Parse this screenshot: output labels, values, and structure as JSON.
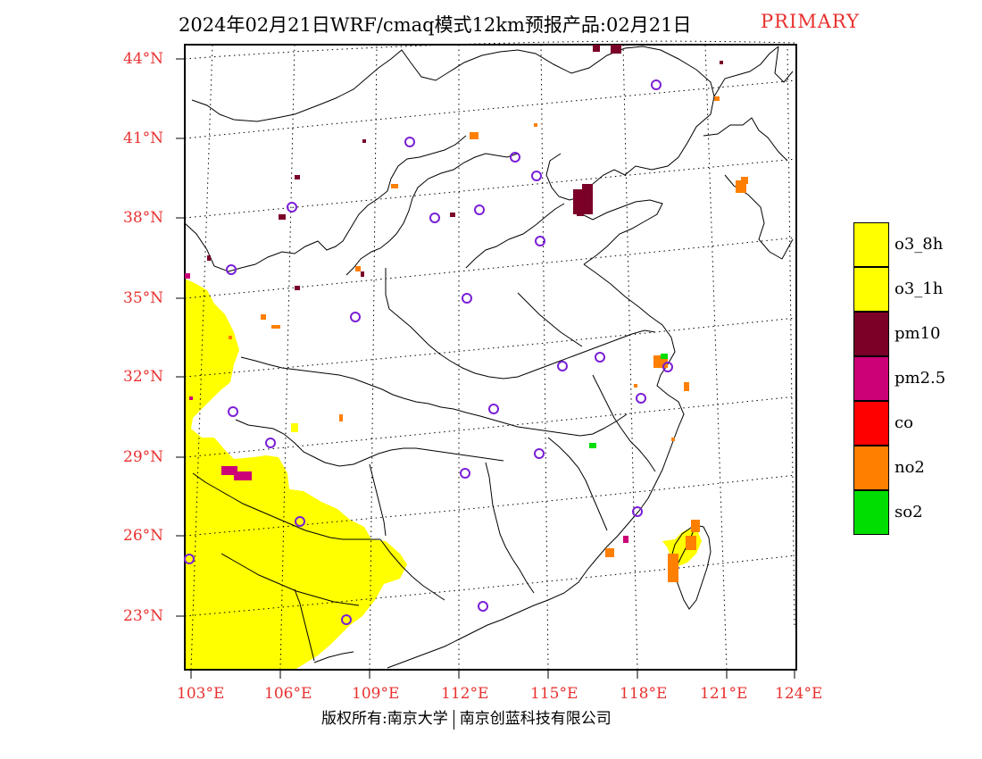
{
  "title": {
    "main": "2024年02月21日WRF/cmaq模式12km预报产品:02月21日",
    "tag": "PRIMARY"
  },
  "axes": {
    "lat_labels": [
      "44°N",
      "41°N",
      "38°N",
      "35°N",
      "32°N",
      "29°N",
      "26°N",
      "23°N"
    ],
    "lon_labels": [
      "103°E",
      "106°E",
      "109°E",
      "112°E",
      "115°E",
      "118°E",
      "121°E",
      "124°E"
    ]
  },
  "legend": {
    "items": [
      {
        "label": "o3_8h",
        "color": "#ffff00"
      },
      {
        "label": "o3_1h",
        "color": "#ffff00"
      },
      {
        "label": "pm10",
        "color": "#7a0028"
      },
      {
        "label": "pm2.5",
        "color": "#cc0077"
      },
      {
        "label": "co",
        "color": "#ff0000"
      },
      {
        "label": "no2",
        "color": "#ff7f00"
      },
      {
        "label": "so2",
        "color": "#00dd00"
      }
    ]
  },
  "footer": {
    "copyright": "版权所有:南京大学",
    "company": "南京创蓝科技有限公司"
  }
}
